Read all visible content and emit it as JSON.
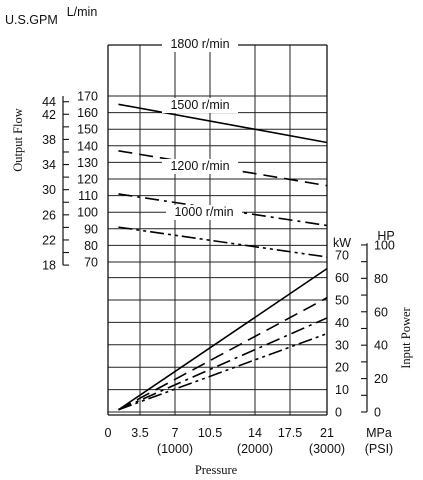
{
  "chart_data": {
    "type": "line",
    "title": "",
    "xlabel": "Pressure",
    "x_axis": {
      "range": [
        0,
        21
      ],
      "ticks": [
        {
          "value": 0,
          "label": "0",
          "psi": ""
        },
        {
          "value": 3.5,
          "label": "3.5",
          "psi": ""
        },
        {
          "value": 7,
          "label": "7",
          "psi": "(1000)"
        },
        {
          "value": 10.5,
          "label": "10.5",
          "psi": ""
        },
        {
          "value": 14,
          "label": "14",
          "psi": "(2000)"
        },
        {
          "value": 17.5,
          "label": "17.5",
          "psi": ""
        },
        {
          "value": 21,
          "label": "21",
          "psi": "(3000)"
        }
      ],
      "unit_mpa": "MPa",
      "unit_psi": "(PSI)"
    },
    "flow_axis": {
      "ylabel": "Output Flow",
      "unit_lmin": "L/min",
      "unit_gpm": "U.S.GPM",
      "range_lmin": [
        70,
        170
      ],
      "lmin_ticks": [
        "70",
        "80",
        "90",
        "100",
        "110",
        "120",
        "130",
        "140",
        "150",
        "160",
        "170"
      ],
      "gpm_ticks": [
        {
          "value": 18,
          "label": "18"
        },
        {
          "value": 22,
          "label": "22"
        },
        {
          "value": 26,
          "label": "26"
        },
        {
          "value": 30,
          "label": "30"
        },
        {
          "value": 34,
          "label": "34"
        },
        {
          "value": 38,
          "label": "38"
        },
        {
          "value": 42,
          "label": "42"
        },
        {
          "value": 44,
          "label": "44"
        }
      ]
    },
    "power_axis": {
      "ylabel": "Input Power",
      "unit_kw": "kW",
      "unit_hp": "HP",
      "range_kw": [
        0,
        72
      ],
      "kw_ticks": [
        "0",
        "10",
        "20",
        "30",
        "40",
        "50",
        "60",
        "70"
      ],
      "hp_ticks": [
        {
          "value": 0,
          "label": "0"
        },
        {
          "value": 20,
          "label": "20"
        },
        {
          "value": 40,
          "label": "40"
        },
        {
          "value": 60,
          "label": "60"
        },
        {
          "value": 80,
          "label": "80"
        },
        {
          "value": 100,
          "label": "100"
        }
      ]
    },
    "flow_series": [
      {
        "name": "1800 r/min",
        "style": "solid",
        "x": [
          1,
          21
        ],
        "y": [
          165,
          142
        ]
      },
      {
        "name": "1500 r/min",
        "style": "dashed",
        "x": [
          1,
          21
        ],
        "y": [
          137,
          116
        ]
      },
      {
        "name": "1200 r/min",
        "style": "dashdot",
        "x": [
          1,
          21
        ],
        "y": [
          111,
          92
        ]
      },
      {
        "name": "1000 r/min",
        "style": "dashdotdot",
        "x": [
          1,
          21
        ],
        "y": [
          91,
          73
        ]
      }
    ],
    "power_series": [
      {
        "style": "solid",
        "x": [
          1,
          21
        ],
        "y": [
          1,
          64
        ]
      },
      {
        "style": "dashed",
        "x": [
          1,
          21
        ],
        "y": [
          1,
          51
        ]
      },
      {
        "style": "dashdot",
        "x": [
          1,
          21
        ],
        "y": [
          1,
          42
        ]
      },
      {
        "style": "dashdotdot",
        "x": [
          1,
          21
        ],
        "y": [
          1,
          35
        ]
      }
    ],
    "grid": true
  }
}
